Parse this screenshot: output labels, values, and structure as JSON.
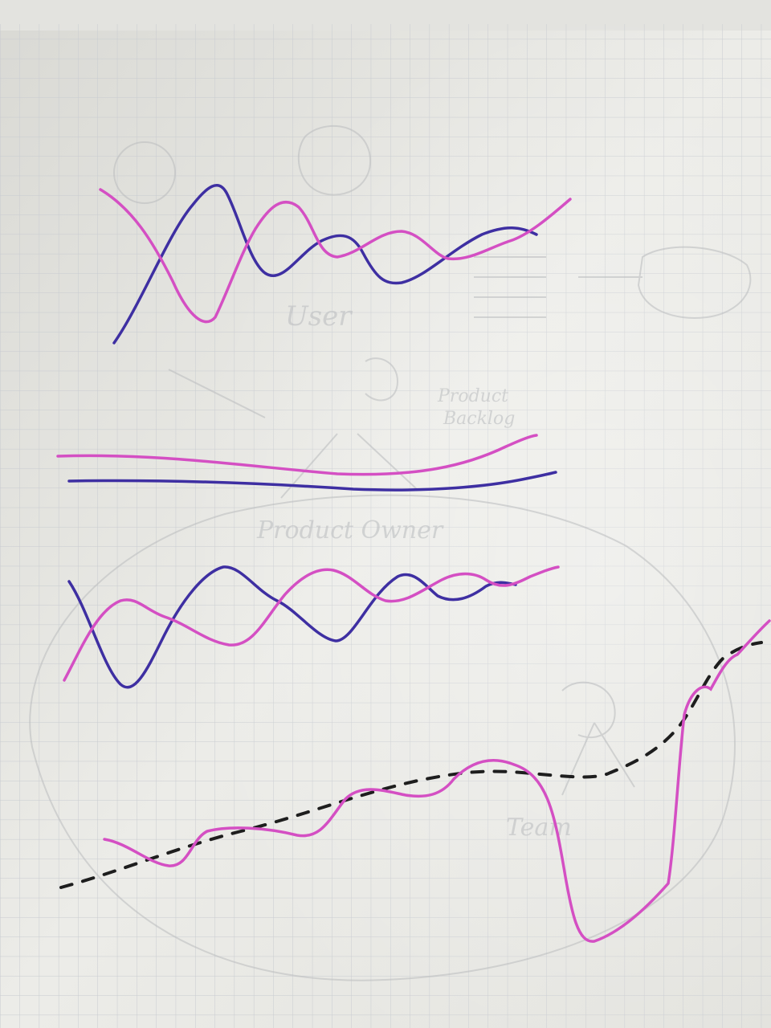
{
  "scene": {
    "description_colors": {
      "paper": "#ecece8",
      "grid": "#c9ccd0",
      "blue_marker": "#3e2fa2",
      "pink_marker": "#d44fc3",
      "black_marker": "#1e1e1e",
      "faint_ghost": "#b9bbbd"
    },
    "ghost_text": [
      {
        "text": "User"
      },
      {
        "text": "Product"
      },
      {
        "text": "Backlog"
      },
      {
        "text": "Product Owner"
      },
      {
        "text": "Team"
      }
    ]
  }
}
